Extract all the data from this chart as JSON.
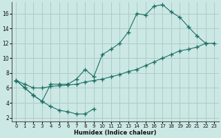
{
  "xlabel": "Humidex (Indice chaleur)",
  "bg_color": "#cce8e4",
  "grid_color": "#aaccc8",
  "line_color": "#1a6e64",
  "xlim": [
    -0.5,
    23.5
  ],
  "ylim": [
    1.5,
    17.5
  ],
  "xticks": [
    0,
    1,
    2,
    3,
    4,
    5,
    6,
    7,
    8,
    9,
    10,
    11,
    12,
    13,
    14,
    15,
    16,
    17,
    18,
    19,
    20,
    21,
    22,
    23
  ],
  "yticks": [
    2,
    4,
    6,
    8,
    10,
    12,
    14,
    16
  ],
  "line1_x": [
    0,
    1,
    2,
    3,
    4,
    5,
    6,
    7,
    8,
    9
  ],
  "line1_y": [
    7.0,
    6.0,
    5.0,
    4.2,
    3.5,
    3.0,
    2.8,
    2.5,
    2.5,
    3.2
  ],
  "line2_x": [
    0,
    1,
    2,
    3,
    4,
    5,
    6,
    7,
    8,
    9,
    10,
    11,
    12,
    13,
    14,
    15,
    16,
    17,
    18,
    19,
    20,
    21,
    22
  ],
  "line2_y": [
    7.0,
    6.0,
    5.0,
    4.2,
    6.5,
    6.5,
    6.5,
    7.2,
    8.5,
    7.5,
    10.5,
    11.2,
    12.0,
    13.5,
    16.0,
    15.8,
    17.0,
    17.2,
    16.2,
    15.5,
    14.2,
    13.0,
    12.0
  ],
  "line3_x": [
    0,
    1,
    2,
    3,
    4,
    5,
    6,
    7,
    8,
    9,
    10,
    11,
    12,
    13,
    14,
    15,
    16,
    17,
    18,
    19,
    20,
    21,
    22,
    23
  ],
  "line3_y": [
    7.0,
    6.5,
    6.0,
    6.0,
    6.2,
    6.3,
    6.4,
    6.5,
    6.8,
    7.0,
    7.2,
    7.5,
    7.8,
    8.2,
    8.5,
    9.0,
    9.5,
    10.0,
    10.5,
    11.0,
    11.2,
    11.5,
    12.0,
    12.0
  ]
}
